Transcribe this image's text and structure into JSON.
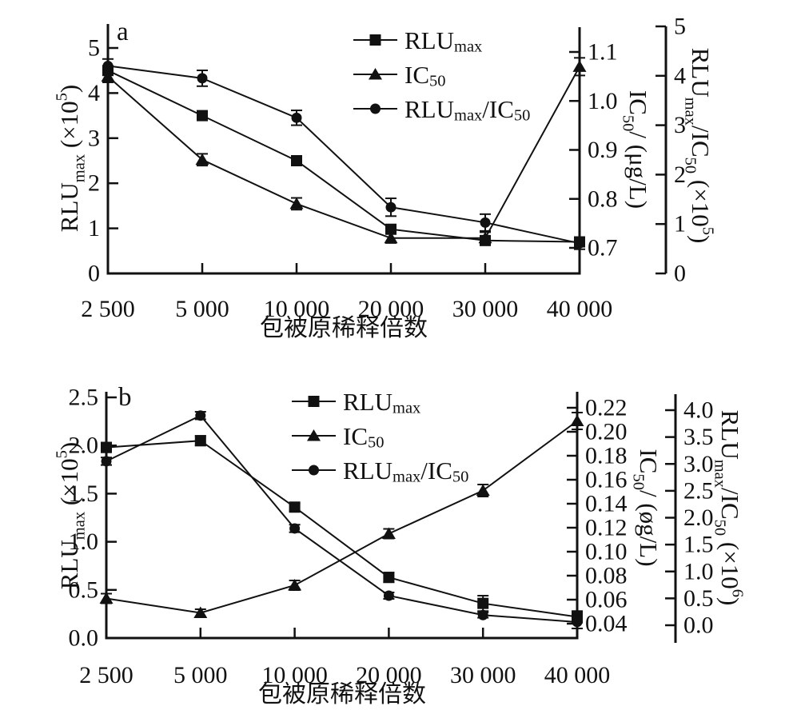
{
  "figure": {
    "background": "#ffffff",
    "ink_color": "#111111",
    "panel_count": 2
  },
  "chart_data": [
    {
      "type": "line",
      "panel_label": "a",
      "xlabel": "包被原稀释倍数",
      "categories": [
        2500,
        5000,
        10000,
        20000,
        30000,
        40000
      ],
      "x_tick_labels": [
        "2 500",
        "5 000",
        "10 000",
        "20 000",
        "30 000",
        "40 000"
      ],
      "legend_position": "top-center-inside",
      "grid": false,
      "axes": {
        "left": {
          "title": "RLU max (×10^5)",
          "range": [
            0,
            5
          ],
          "tick_values": [
            0,
            1,
            2,
            3,
            4,
            5
          ],
          "tick_labels": [
            "0",
            "1",
            "2",
            "3",
            "4",
            "5"
          ],
          "label_parts": [
            {
              "t": "RLU",
              "m": "n"
            },
            {
              "t": "max",
              "m": "sub"
            },
            {
              "t": " (×10",
              "m": "n"
            },
            {
              "t": "5",
              "m": "sup"
            },
            {
              "t": ")",
              "m": "n"
            }
          ]
        },
        "ic50": {
          "title": "IC50/ (μg/L)",
          "range": [
            0.7,
            1.1
          ],
          "tick_values": [
            0.7,
            0.8,
            0.9,
            1.0,
            1.1
          ],
          "tick_labels": [
            "0.7",
            "0.8",
            "0.9",
            "1.0",
            "1.1"
          ],
          "label_parts": [
            {
              "t": "IC",
              "m": "n"
            },
            {
              "t": "50",
              "m": "sub"
            },
            {
              "t": "/ (μg/L)",
              "m": "n"
            }
          ]
        },
        "ratio": {
          "title": "RLU max/IC50 (×10^5)",
          "range": [
            0,
            5
          ],
          "tick_values": [
            0,
            1,
            2,
            3,
            4,
            5
          ],
          "tick_labels": [
            "0",
            "1",
            "2",
            "3",
            "4",
            "5"
          ],
          "label_parts": [
            {
              "t": "RLU",
              "m": "n"
            },
            {
              "t": "max",
              "m": "sub"
            },
            {
              "t": "/IC",
              "m": "n"
            },
            {
              "t": "50",
              "m": "sub"
            },
            {
              "t": " (×10",
              "m": "n"
            },
            {
              "t": "5",
              "m": "sup"
            },
            {
              "t": ")",
              "m": "n"
            }
          ]
        }
      },
      "series": [
        {
          "name": "RLU_max",
          "marker": "square",
          "axis": "left",
          "values": [
            4.5,
            3.5,
            2.5,
            0.98,
            0.73,
            0.7
          ],
          "errors": [
            0.09,
            0.09,
            0.07,
            0.09,
            0.1,
            0.07
          ],
          "label_parts": [
            {
              "t": "RLU",
              "m": "n"
            },
            {
              "t": "max",
              "m": "sub"
            }
          ]
        },
        {
          "name": "IC_50",
          "marker": "triangle",
          "axis": "ic50",
          "values": [
            1.05,
            0.88,
            0.79,
            0.72,
            0.72,
            1.07
          ],
          "errors": [
            0.012,
            0.012,
            0.012,
            0.01,
            0.012,
            0.018
          ],
          "label_parts": [
            {
              "t": "IC",
              "m": "n"
            },
            {
              "t": "50",
              "m": "sub"
            }
          ]
        },
        {
          "name": "RLU_max/IC_50",
          "marker": "circle",
          "axis": "ratio",
          "values": [
            4.2,
            3.95,
            3.15,
            1.34,
            1.03,
            0.61
          ],
          "errors": [
            0.14,
            0.16,
            0.15,
            0.18,
            0.17,
            0.12
          ],
          "label_parts": [
            {
              "t": "RLU",
              "m": "n"
            },
            {
              "t": "max",
              "m": "sub"
            },
            {
              "t": "/IC",
              "m": "n"
            },
            {
              "t": "50",
              "m": "sub"
            }
          ]
        }
      ]
    },
    {
      "type": "line",
      "panel_label": "b",
      "xlabel": "包被原稀释倍数",
      "categories": [
        2500,
        5000,
        10000,
        20000,
        30000,
        40000
      ],
      "x_tick_labels": [
        "2 500",
        "5 000",
        "10 000",
        "20 000",
        "30 000",
        "40 000"
      ],
      "legend_position": "top-right-inside",
      "grid": false,
      "axes": {
        "left": {
          "title": "RLU max (×10^5)",
          "range": [
            0,
            2.5
          ],
          "tick_values": [
            0,
            0.5,
            1.0,
            1.5,
            2.0,
            2.5
          ],
          "tick_labels": [
            "0.0",
            "0.5",
            "1.0",
            "1.5",
            "2.0",
            "2.5"
          ],
          "label_parts": [
            {
              "t": "RLU",
              "m": "n"
            },
            {
              "t": "max",
              "m": "sub"
            },
            {
              "t": " (×10",
              "m": "n"
            },
            {
              "t": "5",
              "m": "sup"
            },
            {
              "t": ")",
              "m": "n"
            }
          ]
        },
        "ic50": {
          "title": "IC50/ (øg/L)",
          "range": [
            0.04,
            0.22
          ],
          "tick_values": [
            0.04,
            0.06,
            0.08,
            0.1,
            0.12,
            0.14,
            0.16,
            0.18,
            0.2,
            0.22
          ],
          "tick_labels": [
            "0.04",
            "0.06",
            "0.08",
            "0.10",
            "0.12",
            "0.14",
            "0.16",
            "0.18",
            "0.20",
            "0.22"
          ],
          "label_parts": [
            {
              "t": "IC",
              "m": "n"
            },
            {
              "t": "50",
              "m": "sub"
            },
            {
              "t": "/ (øg/L)",
              "m": "n"
            }
          ]
        },
        "ratio": {
          "title": "RLU max/IC50 (×10^6)",
          "range": [
            0,
            4.0
          ],
          "tick_values": [
            0,
            0.5,
            1.0,
            1.5,
            2.0,
            2.5,
            3.0,
            3.5,
            4.0
          ],
          "tick_labels": [
            "0.0",
            "0.5",
            "1.0",
            "1.5",
            "2.0",
            "2.5",
            "3.0",
            "3.5",
            "4.0"
          ],
          "label_parts": [
            {
              "t": "RLU",
              "m": "n"
            },
            {
              "t": "max",
              "m": "sub"
            },
            {
              "t": "/IC",
              "m": "n"
            },
            {
              "t": "50",
              "m": "sub"
            },
            {
              "t": " (×10",
              "m": "n"
            },
            {
              "t": "6",
              "m": "sup"
            },
            {
              "t": ")",
              "m": "n"
            }
          ]
        }
      },
      "series": [
        {
          "name": "RLU_max",
          "marker": "square",
          "axis": "left",
          "values": [
            1.98,
            2.05,
            1.36,
            0.63,
            0.36,
            0.22
          ],
          "errors": [
            0.05,
            0.05,
            0.04,
            0.05,
            0.08,
            0.06
          ],
          "label_parts": [
            {
              "t": "RLU",
              "m": "n"
            },
            {
              "t": "max",
              "m": "sub"
            }
          ]
        },
        {
          "name": "IC_50",
          "marker": "triangle",
          "axis": "ic50",
          "values": [
            0.061,
            0.049,
            0.072,
            0.115,
            0.151,
            0.209
          ],
          "errors": [
            0.004,
            0.003,
            0.004,
            0.004,
            0.005,
            0.007
          ],
          "label_parts": [
            {
              "t": "IC",
              "m": "n"
            },
            {
              "t": "50",
              "m": "sub"
            }
          ]
        },
        {
          "name": "RLU_max/IC_50",
          "marker": "circle",
          "axis": "ratio",
          "values": [
            3.05,
            3.9,
            1.8,
            0.55,
            0.19,
            0.06
          ],
          "errors": [
            0.07,
            0.07,
            0.07,
            0.06,
            0.05,
            0.12
          ],
          "label_parts": [
            {
              "t": "RLU",
              "m": "n"
            },
            {
              "t": "max",
              "m": "sub"
            },
            {
              "t": "/IC",
              "m": "n"
            },
            {
              "t": "50",
              "m": "sub"
            }
          ]
        }
      ]
    }
  ]
}
